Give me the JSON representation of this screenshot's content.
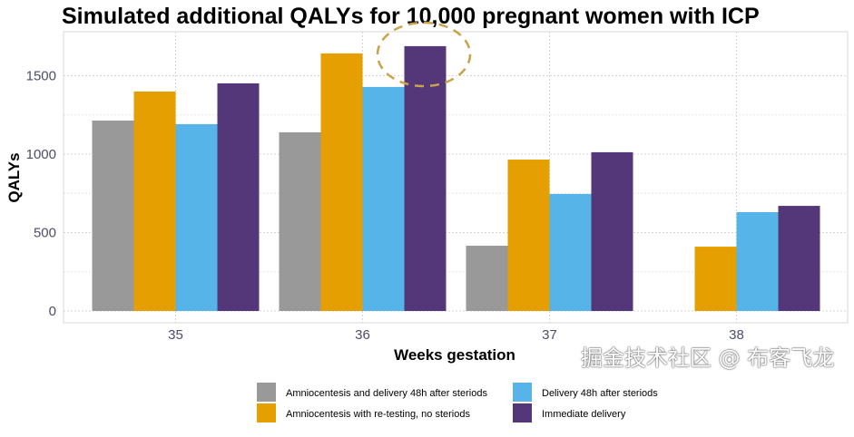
{
  "chart_data": {
    "type": "bar",
    "title": "Simulated additional QALYs for 10,000 pregnant women with ICP",
    "xlabel": "Weeks gestation",
    "ylabel": "QALYs",
    "categories": [
      "35",
      "36",
      "37",
      "38"
    ],
    "yticks": [
      0,
      500,
      1000,
      1500
    ],
    "ylim": [
      -75,
      1780
    ],
    "grid": true,
    "legend_position": "bottom",
    "series": [
      {
        "name": "Amniocentesis and delivery 48h after steriods",
        "color": "#999999",
        "values": [
          1214,
          1139,
          416,
          0
        ]
      },
      {
        "name": "Amniocentesis with re-testing, no steriods",
        "color": "#E69F00",
        "values": [
          1399,
          1642,
          965,
          410
        ]
      },
      {
        "name": "Delivery 48h after steriods",
        "color": "#56B4E9",
        "values": [
          1191,
          1428,
          746,
          630
        ]
      },
      {
        "name": "Immediate delivery",
        "color": "#543779",
        "values": [
          1451,
          1688,
          1012,
          670
        ]
      }
    ],
    "annotation": {
      "type": "dashed-ellipse",
      "target": "36 - Immediate delivery",
      "color": "#C9A24A"
    }
  },
  "watermark": "掘金技术社区 @ 布客飞龙"
}
